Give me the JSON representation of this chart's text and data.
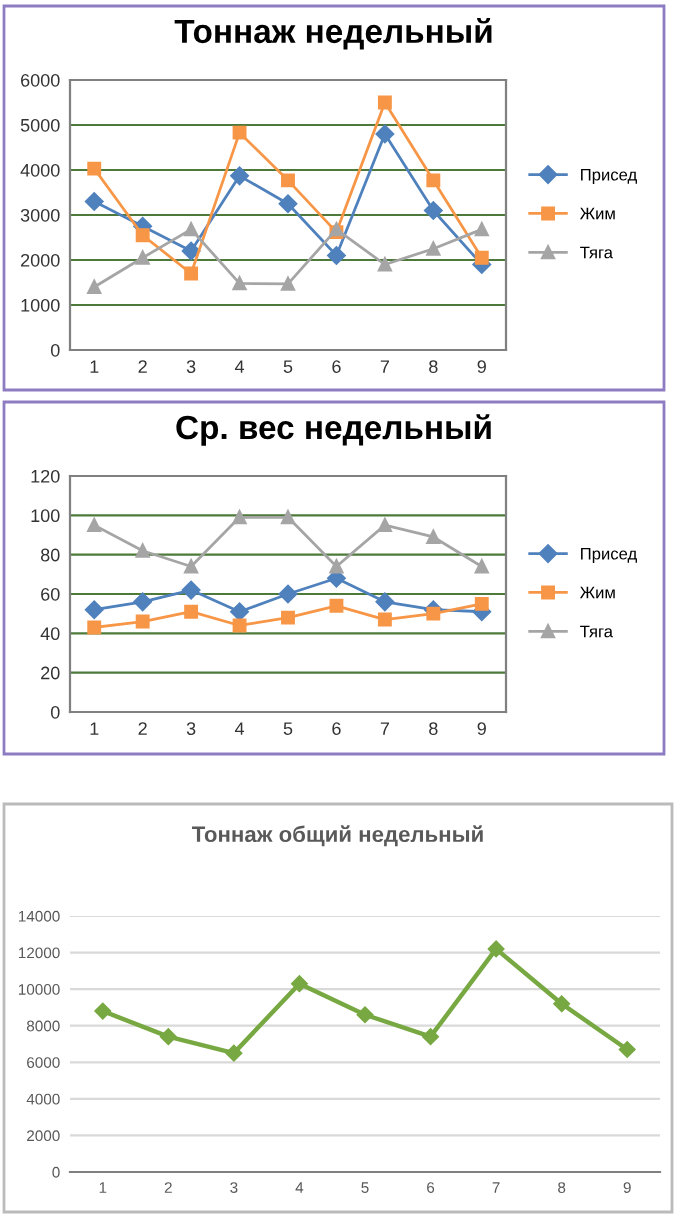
{
  "chart_data": [
    {
      "type": "line",
      "title": "Тоннаж недельный",
      "categories": [
        "1",
        "2",
        "3",
        "4",
        "5",
        "6",
        "7",
        "8",
        "9"
      ],
      "ylim": [
        0,
        6000
      ],
      "yticks": [
        0,
        1000,
        2000,
        3000,
        4000,
        5000,
        6000
      ],
      "grid": "y",
      "legend": "right",
      "series": [
        {
          "name": "Присед",
          "color": "#4f81bd",
          "marker": "diamond",
          "values": [
            3300,
            2750,
            2200,
            3870,
            3250,
            2100,
            4800,
            3100,
            1900
          ]
        },
        {
          "name": "Жим",
          "color": "#f79646",
          "marker": "square",
          "values": [
            4030,
            2550,
            1700,
            4830,
            3770,
            2620,
            5500,
            3770,
            2050
          ]
        },
        {
          "name": "Тяга",
          "color": "#a5a5a5",
          "marker": "triangle",
          "values": [
            1400,
            2050,
            2680,
            1480,
            1470,
            2680,
            1900,
            2250,
            2680
          ]
        }
      ]
    },
    {
      "type": "line",
      "title": "Ср. вес недельный",
      "categories": [
        "1",
        "2",
        "3",
        "4",
        "5",
        "6",
        "7",
        "8",
        "9"
      ],
      "ylim": [
        0,
        120
      ],
      "yticks": [
        0,
        20,
        40,
        60,
        80,
        100,
        120
      ],
      "grid": "y",
      "legend": "right",
      "series": [
        {
          "name": "Присед",
          "color": "#4f81bd",
          "marker": "diamond",
          "values": [
            52,
            56,
            62,
            51,
            60,
            68,
            56,
            52,
            51
          ]
        },
        {
          "name": "Жим",
          "color": "#f79646",
          "marker": "square",
          "values": [
            43,
            46,
            51,
            44,
            48,
            54,
            47,
            50,
            55
          ]
        },
        {
          "name": "Тяга",
          "color": "#a5a5a5",
          "marker": "triangle",
          "values": [
            95,
            82,
            74,
            99,
            99,
            74,
            95,
            89,
            74
          ]
        }
      ]
    },
    {
      "type": "line",
      "title": "Тоннаж общий недельный",
      "categories": [
        "1",
        "2",
        "3",
        "4",
        "5",
        "6",
        "7",
        "8",
        "9"
      ],
      "ylim": [
        0,
        14000
      ],
      "yticks": [
        0,
        2000,
        4000,
        6000,
        8000,
        10000,
        12000,
        14000
      ],
      "grid": "y",
      "marker": "diamond",
      "series": [
        {
          "color": "#77a842",
          "values": [
            8800,
            7400,
            6500,
            10300,
            8600,
            7400,
            12200,
            9200,
            6700
          ]
        }
      ]
    }
  ]
}
